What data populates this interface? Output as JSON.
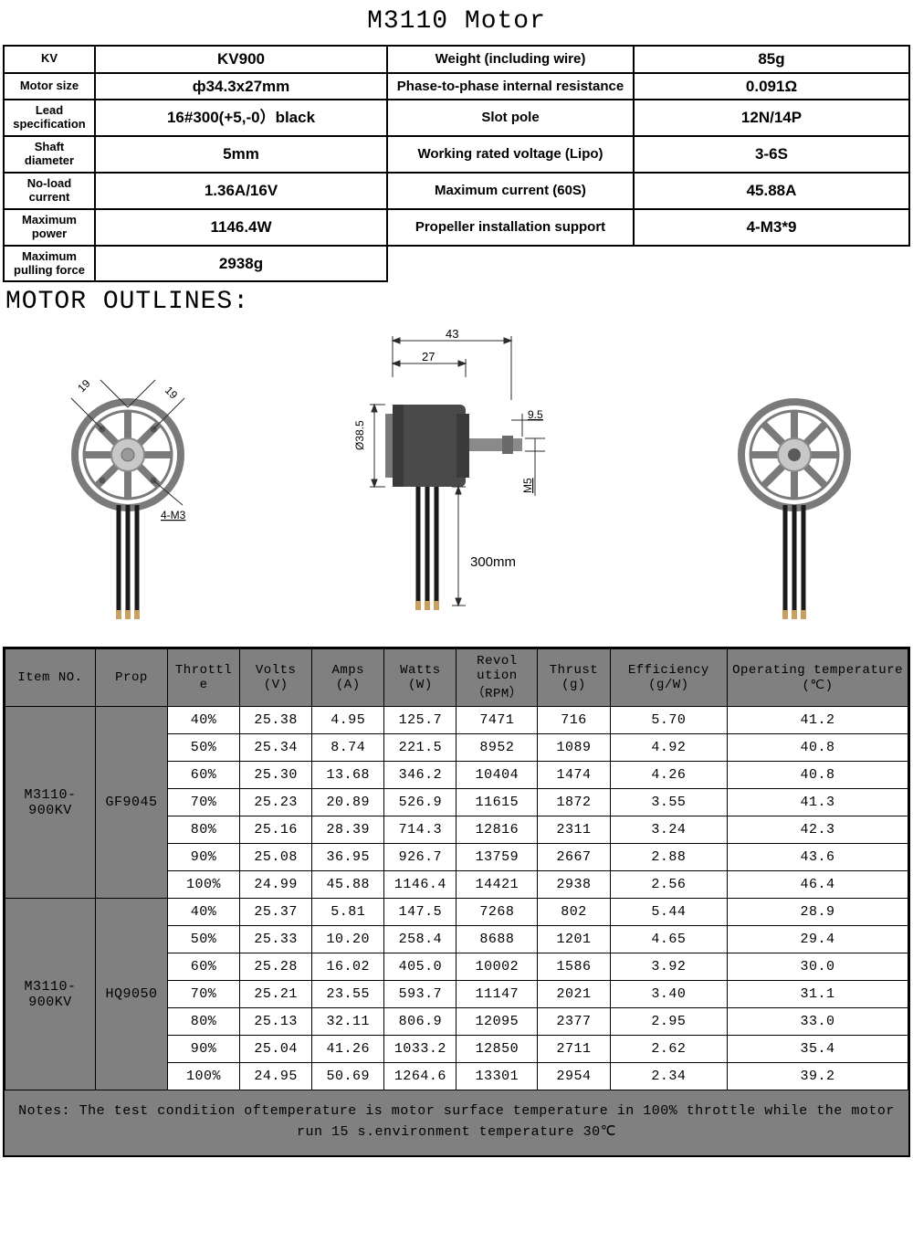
{
  "title": "M3110 Motor",
  "spec_rows": [
    {
      "l1": "KV",
      "v1": "KV900",
      "l2": "Weight (including wire)",
      "v2": "85g"
    },
    {
      "l1": "Motor size",
      "v1": "ф34.3x27mm",
      "l2": "Phase-to-phase internal resistance",
      "v2": "0.091Ω"
    },
    {
      "l1": "Lead specification",
      "v1": "16#300(+5,-0）black",
      "l2": "Slot pole",
      "v2": "12N/14P"
    },
    {
      "l1": "Shaft diameter",
      "v1": "5mm",
      "l2": "Working rated voltage (Lipo)",
      "v2": "3-6S"
    },
    {
      "l1": "No-load current",
      "v1": "1.36A/16V",
      "l2": "Maximum current (60S)",
      "v2": "45.88A"
    },
    {
      "l1": "Maximum power",
      "v1": "1146.4W",
      "l2": "Propeller installation support",
      "v2": "4-M3*9"
    },
    {
      "l1": "Maximum pulling force",
      "v1": "2938g",
      "l2": "",
      "v2": ""
    }
  ],
  "outlines_heading": "MOTOR OUTLINES:",
  "diagram": {
    "dim_43": "43",
    "dim_27": "27",
    "dim_95": "9.5",
    "dim_385": "Ø38.5",
    "dim_m5": "M5",
    "dim_300": "300mm",
    "dim_19a": "19",
    "dim_19b": "19",
    "dim_4m3": "4-M3",
    "colors": {
      "bell": "#4a4a4a",
      "shaft": "#8a8a8a",
      "wire": "#1a1a1a",
      "rotor": "#b8b8b8",
      "rotor_dark": "#7a7a7a",
      "hub": "#c8c8c8",
      "dimline": "#2b2b2b"
    }
  },
  "perf_headers": [
    "Item NO.",
    "Prop",
    "Throttle",
    "Volts (V)",
    "Amps (A)",
    "Watts (W)",
    "Revolution（RPM）",
    "Thrust (g)",
    "Efficiency (g/W)",
    "Operating temperature(℃)"
  ],
  "perf_col_widths": [
    "10%",
    "8%",
    "8%",
    "8%",
    "8%",
    "8%",
    "9%",
    "8%",
    "13%",
    "20%"
  ],
  "perf_groups": [
    {
      "item": "M3110-900KV",
      "prop": "GF9045",
      "rows": [
        [
          "40%",
          "25.38",
          "4.95",
          "125.7",
          "7471",
          "716",
          "5.70",
          "41.2"
        ],
        [
          "50%",
          "25.34",
          "8.74",
          "221.5",
          "8952",
          "1089",
          "4.92",
          "40.8"
        ],
        [
          "60%",
          "25.30",
          "13.68",
          "346.2",
          "10404",
          "1474",
          "4.26",
          "40.8"
        ],
        [
          "70%",
          "25.23",
          "20.89",
          "526.9",
          "11615",
          "1872",
          "3.55",
          "41.3"
        ],
        [
          "80%",
          "25.16",
          "28.39",
          "714.3",
          "12816",
          "2311",
          "3.24",
          "42.3"
        ],
        [
          "90%",
          "25.08",
          "36.95",
          "926.7",
          "13759",
          "2667",
          "2.88",
          "43.6"
        ],
        [
          "100%",
          "24.99",
          "45.88",
          "1146.4",
          "14421",
          "2938",
          "2.56",
          "46.4"
        ]
      ]
    },
    {
      "item": "M3110-900KV",
      "prop": "HQ9050",
      "rows": [
        [
          "40%",
          "25.37",
          "5.81",
          "147.5",
          "7268",
          "802",
          "5.44",
          "28.9"
        ],
        [
          "50%",
          "25.33",
          "10.20",
          "258.4",
          "8688",
          "1201",
          "4.65",
          "29.4"
        ],
        [
          "60%",
          "25.28",
          "16.02",
          "405.0",
          "10002",
          "1586",
          "3.92",
          "30.0"
        ],
        [
          "70%",
          "25.21",
          "23.55",
          "593.7",
          "11147",
          "2021",
          "3.40",
          "31.1"
        ],
        [
          "80%",
          "25.13",
          "32.11",
          "806.9",
          "12095",
          "2377",
          "2.95",
          "33.0"
        ],
        [
          "90%",
          "25.04",
          "41.26",
          "1033.2",
          "12850",
          "2711",
          "2.62",
          "35.4"
        ],
        [
          "100%",
          "24.95",
          "50.69",
          "1264.6",
          "13301",
          "2954",
          "2.34",
          "39.2"
        ]
      ]
    }
  ],
  "notes": "Notes: The test condition oftemperature is motor surface temperature in 100% throttle while the motor run 15 s.environment temperature 30℃"
}
